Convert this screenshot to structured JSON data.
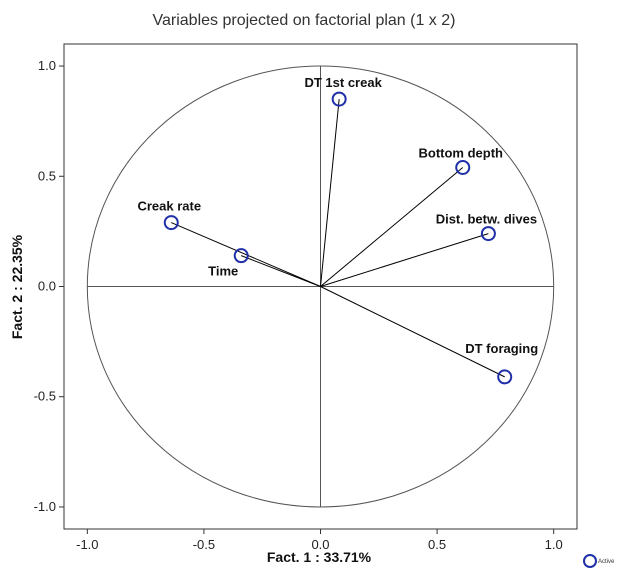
{
  "chart_data": {
    "type": "scatter",
    "title": "Variables projected on factorial plan (1 x 2)",
    "xlabel": "Fact. 1  : 33.71%",
    "ylabel": "Fact. 2  : 22.35%",
    "xlim": [
      -1.1,
      1.1
    ],
    "ylim": [
      -1.1,
      1.1
    ],
    "xticks": [
      -1.0,
      -0.5,
      0.0,
      0.5,
      1.0
    ],
    "yticks": [
      -1.0,
      -0.5,
      0.0,
      0.5,
      1.0
    ],
    "xtick_labels": [
      "-1.0",
      "-0.5",
      "0.0",
      "0.5",
      "1.0"
    ],
    "ytick_labels": [
      "-1.0",
      "-0.5",
      "0.0",
      "0.5",
      "1.0"
    ],
    "grid": false,
    "unit_circle": true,
    "legend": {
      "position": "bottom-right",
      "label": "Active"
    },
    "colors": {
      "marker": "#1f2fa8",
      "line": "#000000",
      "circle": "#555555"
    },
    "points": [
      {
        "name": "DT 1st creak",
        "x": 0.08,
        "y": 0.85
      },
      {
        "name": "Bottom depth",
        "x": 0.61,
        "y": 0.54
      },
      {
        "name": "Dist. betw. dives",
        "x": 0.72,
        "y": 0.24
      },
      {
        "name": "Creak rate",
        "x": -0.64,
        "y": 0.29
      },
      {
        "name": "Time",
        "x": -0.34,
        "y": 0.14
      },
      {
        "name": "DT foraging",
        "x": 0.79,
        "y": -0.41
      }
    ]
  }
}
